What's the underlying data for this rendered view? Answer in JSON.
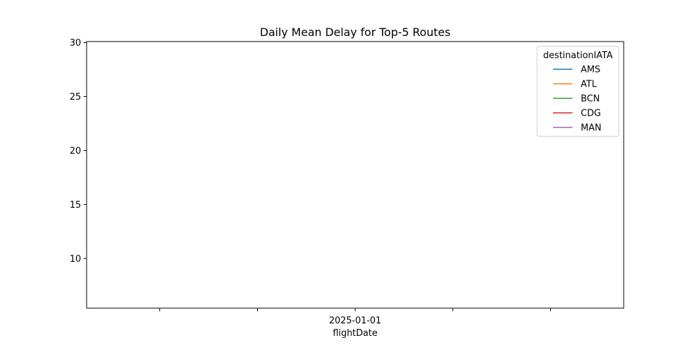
{
  "chart_data": {
    "type": "line",
    "title": "Daily Mean Delay for Top-5 Routes",
    "xlabel": "flightDate",
    "ylabel": "",
    "x_ticks": [
      "",
      "",
      "2025-01-01",
      "",
      ""
    ],
    "y_ticks": [
      10,
      15,
      20,
      25,
      30
    ],
    "ylim": [
      5.4,
      30.1
    ],
    "grid": false,
    "legend": {
      "title": "destinationIATA",
      "placement": "top-right"
    },
    "series": [
      {
        "name": "AMS",
        "color": "#1f77b4",
        "values": []
      },
      {
        "name": "ATL",
        "color": "#ff7f0e",
        "values": []
      },
      {
        "name": "BCN",
        "color": "#2ca02c",
        "values": []
      },
      {
        "name": "CDG",
        "color": "#d62728",
        "values": []
      },
      {
        "name": "MAN",
        "color": "#9467bd",
        "values": []
      }
    ]
  }
}
